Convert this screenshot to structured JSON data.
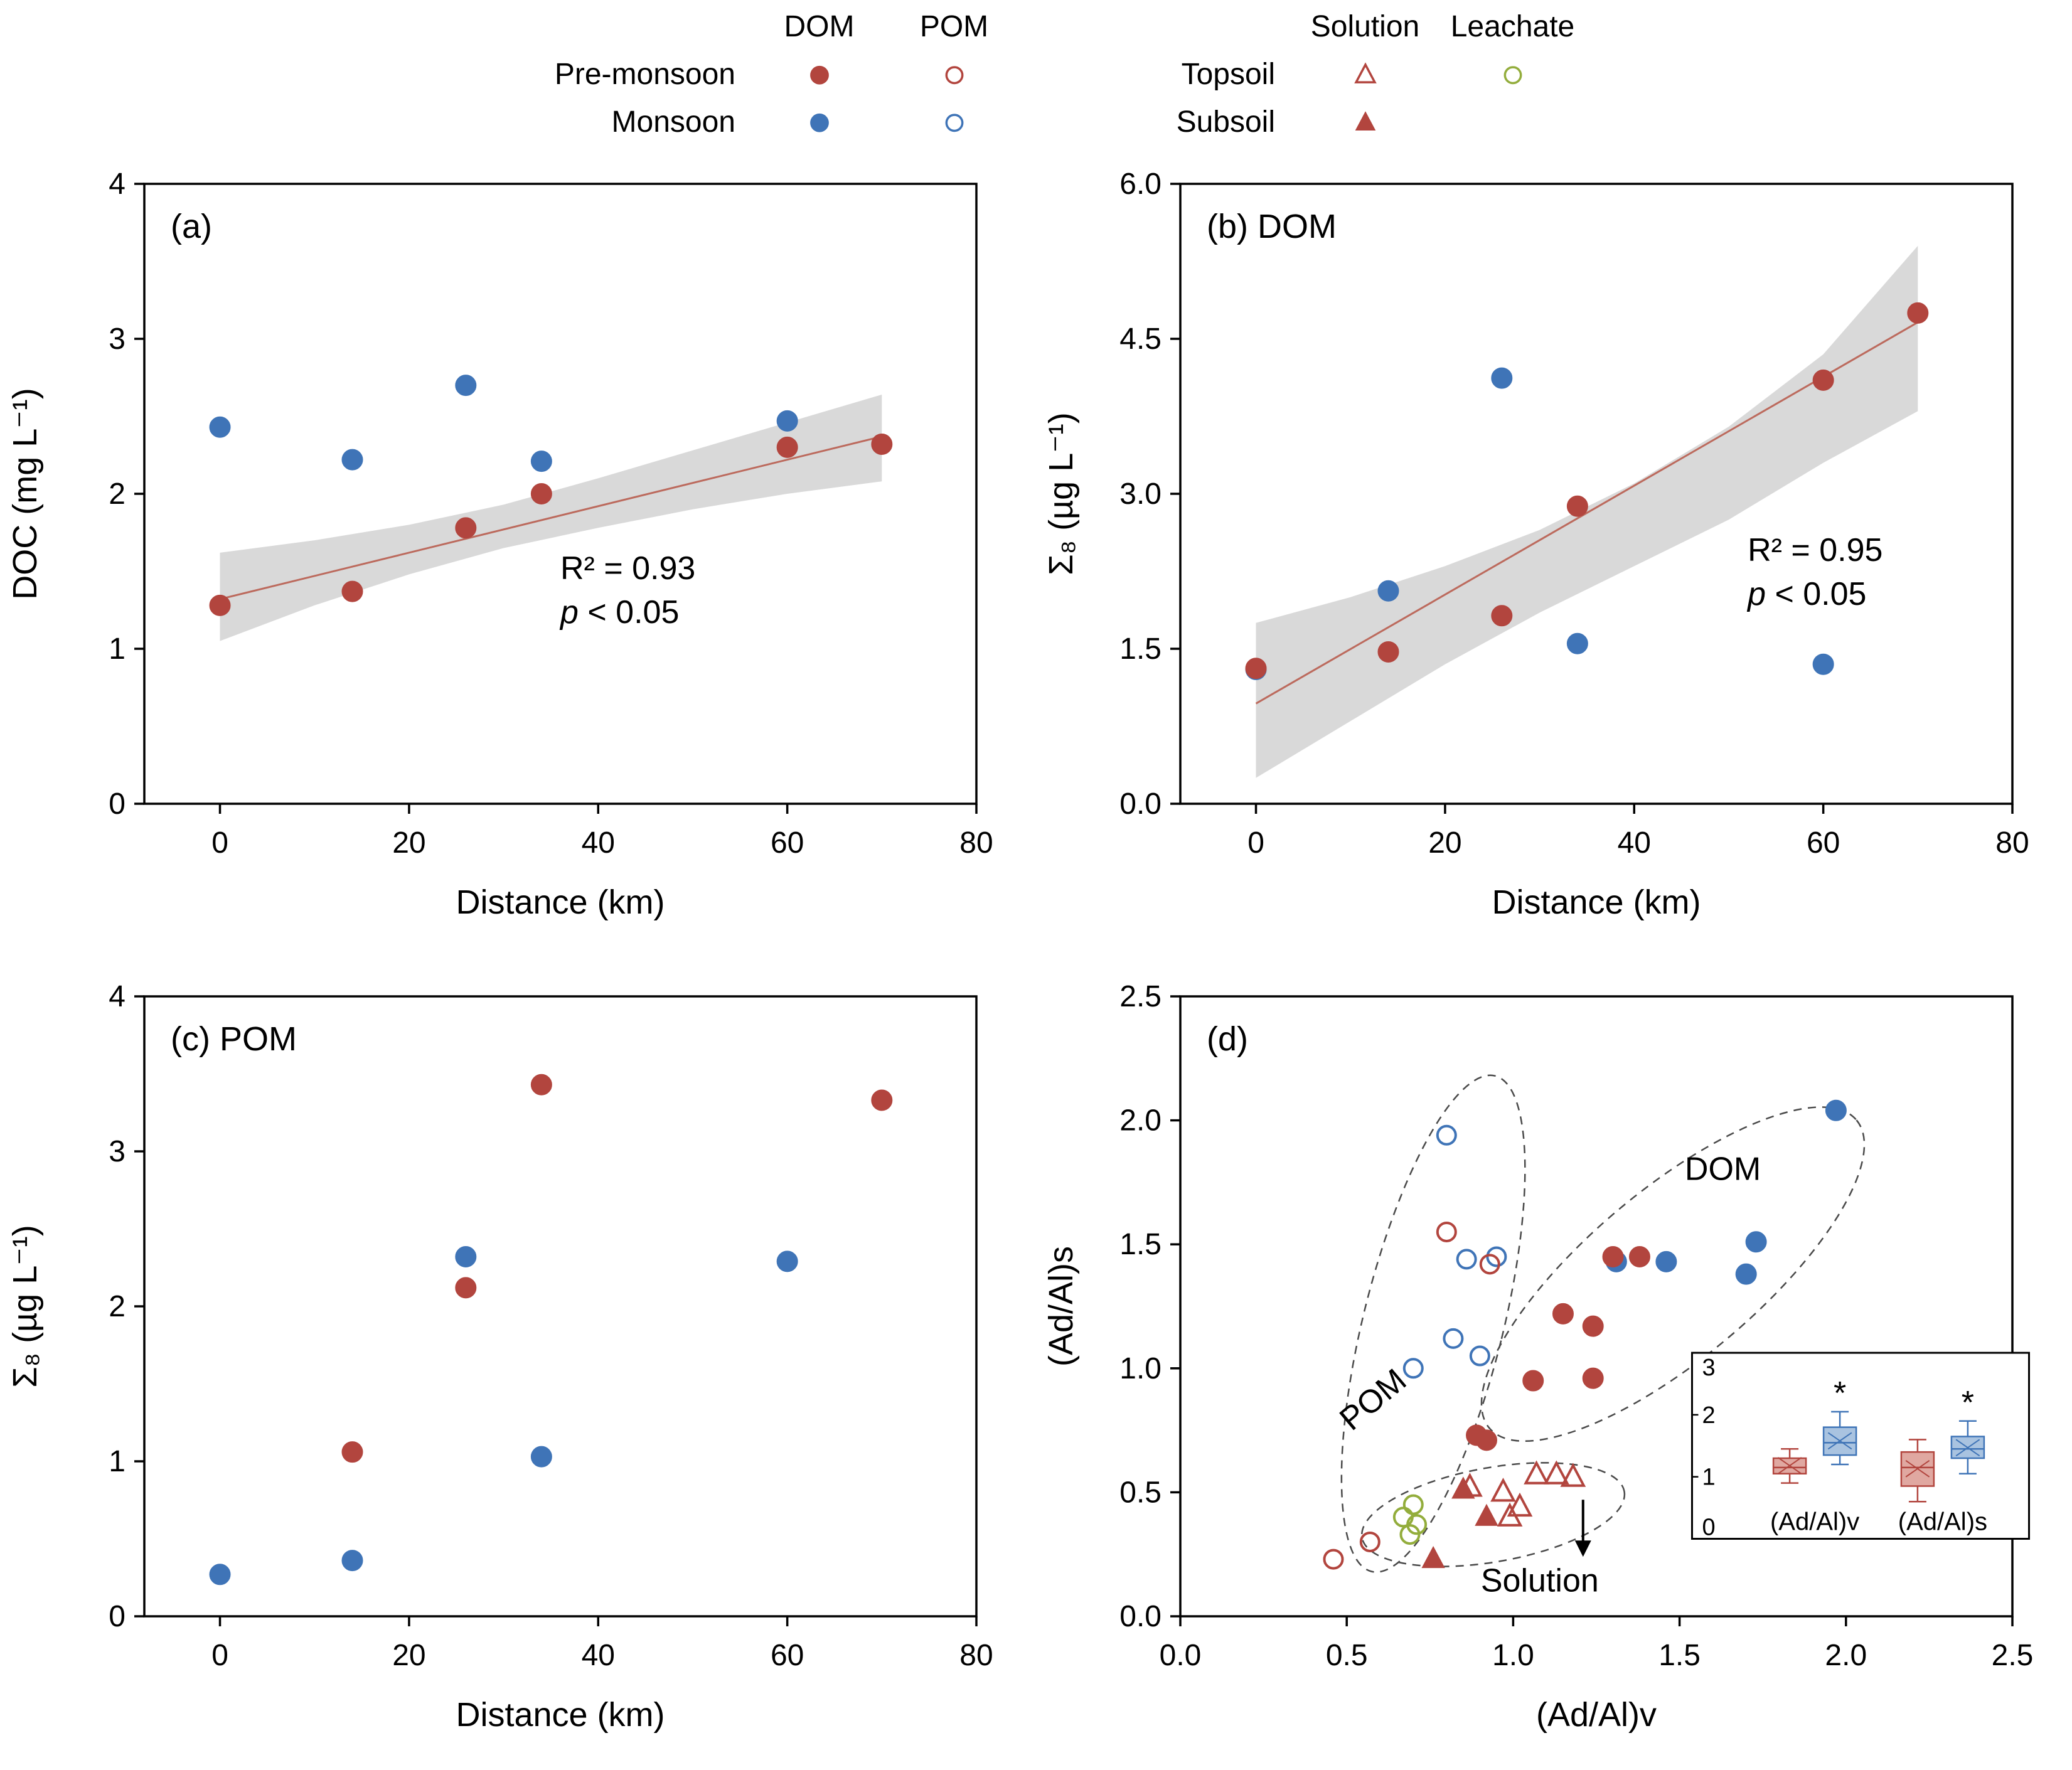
{
  "colors": {
    "red": "#b2453e",
    "blue": "#3f74b7",
    "green": "#93ad3c",
    "band": "#d2d2d2",
    "regline": "#bc6a5d",
    "annotation": "#c00000",
    "red_fill": "#e0a8a1",
    "blue_fill": "#a9c3e0",
    "ellipse": "#4a4a4a"
  },
  "legend": {
    "groups": [
      {
        "headers": [
          "DOM",
          "POM"
        ],
        "rows": [
          {
            "label": "Pre-monsoon",
            "symbols": [
              {
                "shape": "circle",
                "filled": true,
                "color": "red"
              },
              {
                "shape": "circle",
                "filled": false,
                "color": "red"
              }
            ]
          },
          {
            "label": "Monsoon",
            "symbols": [
              {
                "shape": "circle",
                "filled": true,
                "color": "blue"
              },
              {
                "shape": "circle",
                "filled": false,
                "color": "blue"
              }
            ]
          }
        ]
      },
      {
        "headers": [
          "Solution",
          "Leachate"
        ],
        "rows": [
          {
            "label": "Topsoil",
            "symbols": [
              {
                "shape": "triangle",
                "filled": false,
                "color": "red"
              },
              {
                "shape": "circle",
                "filled": false,
                "color": "green"
              }
            ]
          },
          {
            "label": "Subsoil",
            "symbols": [
              {
                "shape": "triangle",
                "filled": true,
                "color": "red"
              },
              null
            ]
          }
        ]
      }
    ]
  },
  "chart_data": [
    {
      "id": "a",
      "type": "scatter",
      "panel_label": "(a)",
      "xlabel": "Distance (km)",
      "ylabel": "DOC (mg L⁻¹)",
      "xlim": [
        -8,
        80
      ],
      "ylim": [
        0,
        4
      ],
      "xticks": [
        "0",
        "20",
        "40",
        "60",
        "80"
      ],
      "yticks": [
        "0",
        "1",
        "2",
        "3",
        "4"
      ],
      "series": [
        {
          "key": "monsoon-dom",
          "name": "Monsoon DOM",
          "marker": "circle",
          "filled": true,
          "color": "blue",
          "points": [
            [
              0,
              2.43
            ],
            [
              14,
              2.22
            ],
            [
              26,
              2.7
            ],
            [
              34,
              2.21
            ],
            [
              60,
              2.47
            ]
          ]
        },
        {
          "key": "pre-monsoon-dom",
          "name": "Pre-monsoon DOM",
          "marker": "circle",
          "filled": true,
          "color": "red",
          "points": [
            [
              0,
              1.28
            ],
            [
              14,
              1.37
            ],
            [
              26,
              1.78
            ],
            [
              34,
              2.0
            ],
            [
              60,
              2.3
            ],
            [
              70,
              2.32
            ]
          ]
        }
      ],
      "regression": {
        "x": [
          0,
          70
        ],
        "y": [
          1.32,
          2.37
        ],
        "r2": 0.93,
        "band": [
          [
            0,
            1.05,
            1.62
          ],
          [
            10,
            1.28,
            1.7
          ],
          [
            20,
            1.48,
            1.8
          ],
          [
            30,
            1.65,
            1.93
          ],
          [
            40,
            1.78,
            2.1
          ],
          [
            50,
            1.9,
            2.28
          ],
          [
            60,
            2.0,
            2.46
          ],
          [
            70,
            2.08,
            2.64
          ]
        ]
      },
      "annotation": {
        "x": 36,
        "y": 1.45,
        "r2_text": "R² = 0.93",
        "p_var": "p",
        "p_rest": " < 0.05"
      }
    },
    {
      "id": "b",
      "type": "scatter",
      "panel_label": "(b) DOM",
      "xlabel": "Distance (km)",
      "ylabel": "Σ₈ (µg L⁻¹)",
      "xlim": [
        -8,
        80
      ],
      "ylim": [
        0,
        6
      ],
      "xticks": [
        "0",
        "20",
        "40",
        "60",
        "80"
      ],
      "yticks": [
        "0.0",
        "1.5",
        "3.0",
        "4.5",
        "6.0"
      ],
      "series": [
        {
          "key": "monsoon-dom",
          "name": "Monsoon DOM",
          "marker": "circle",
          "filled": true,
          "color": "blue",
          "points": [
            [
              0,
              1.3
            ],
            [
              14,
              2.06
            ],
            [
              26,
              4.12
            ],
            [
              34,
              1.55
            ],
            [
              60,
              1.35
            ]
          ]
        },
        {
          "key": "pre-monsoon-dom",
          "name": "Pre-monsoon DOM",
          "marker": "circle",
          "filled": true,
          "color": "red",
          "points": [
            [
              0,
              1.31
            ],
            [
              14,
              1.47
            ],
            [
              26,
              1.82
            ],
            [
              34,
              2.88
            ],
            [
              60,
              4.1
            ],
            [
              70,
              4.75
            ]
          ]
        }
      ],
      "regression": {
        "x": [
          0,
          70
        ],
        "y": [
          0.97,
          4.66
        ],
        "r2": 0.95,
        "band": [
          [
            0,
            0.25,
            1.75
          ],
          [
            10,
            0.8,
            2.0
          ],
          [
            20,
            1.35,
            2.3
          ],
          [
            30,
            1.85,
            2.65
          ],
          [
            40,
            2.3,
            3.1
          ],
          [
            50,
            2.75,
            3.65
          ],
          [
            60,
            3.3,
            4.35
          ],
          [
            70,
            3.8,
            5.4
          ]
        ]
      },
      "annotation": {
        "x": 52,
        "y": 2.35,
        "r2_text": "R² = 0.95",
        "p_var": "p",
        "p_rest": " < 0.05"
      }
    },
    {
      "id": "c",
      "type": "scatter",
      "panel_label": "(c) POM",
      "xlabel": "Distance (km)",
      "ylabel": "Σ₈ (µg L⁻¹)",
      "xlim": [
        -8,
        80
      ],
      "ylim": [
        0,
        4
      ],
      "xticks": [
        "0",
        "20",
        "40",
        "60",
        "80"
      ],
      "yticks": [
        "0",
        "1",
        "2",
        "3",
        "4"
      ],
      "series": [
        {
          "key": "monsoon-pom",
          "name": "Monsoon POM",
          "marker": "circle",
          "filled": true,
          "color": "blue",
          "points": [
            [
              0,
              0.27
            ],
            [
              14,
              0.36
            ],
            [
              26,
              2.32
            ],
            [
              34,
              1.03
            ],
            [
              60,
              2.29
            ]
          ]
        },
        {
          "key": "pre-monsoon-pom",
          "name": "Pre-monsoon POM",
          "marker": "circle",
          "filled": true,
          "color": "red",
          "points": [
            [
              14,
              1.06
            ],
            [
              26,
              2.12
            ],
            [
              34,
              3.43
            ],
            [
              70,
              3.33
            ]
          ]
        }
      ]
    },
    {
      "id": "d",
      "type": "scatter",
      "panel_label": "(d)",
      "xlabel": "(Ad/Al)v",
      "ylabel": "(Ad/Al)s",
      "xlim": [
        0,
        2.5
      ],
      "ylim": [
        0,
        2.5
      ],
      "xticks": [
        "0.0",
        "0.5",
        "1.0",
        "1.5",
        "2.0",
        "2.5"
      ],
      "yticks": [
        "0.0",
        "0.5",
        "1.0",
        "1.5",
        "2.0",
        "2.5"
      ],
      "series": [
        {
          "key": "pom-monsoon",
          "name": "Monsoon POM",
          "marker": "circle",
          "filled": false,
          "color": "blue",
          "points": [
            [
              0.7,
              1.0
            ],
            [
              0.82,
              1.12
            ],
            [
              0.9,
              1.05
            ],
            [
              0.86,
              1.44
            ],
            [
              0.95,
              1.45
            ],
            [
              0.8,
              1.94
            ]
          ]
        },
        {
          "key": "pom-pre-monsoon",
          "name": "Pre-monsoon POM",
          "marker": "circle",
          "filled": false,
          "color": "red",
          "points": [
            [
              0.46,
              0.23
            ],
            [
              0.57,
              0.3
            ],
            [
              0.8,
              1.55
            ],
            [
              0.93,
              1.42
            ]
          ]
        },
        {
          "key": "solution-topsoil",
          "name": "Solution Topsoil",
          "marker": "triangle",
          "filled": false,
          "color": "red",
          "points": [
            [
              0.87,
              0.52
            ],
            [
              0.97,
              0.5
            ],
            [
              1.02,
              0.44
            ],
            [
              1.07,
              0.57
            ],
            [
              1.13,
              0.57
            ],
            [
              1.18,
              0.56
            ],
            [
              0.99,
              0.4
            ]
          ]
        },
        {
          "key": "solution-subsoil",
          "name": "Solution Subsoil",
          "marker": "triangle",
          "filled": true,
          "color": "red",
          "points": [
            [
              0.85,
              0.51
            ],
            [
              0.92,
              0.4
            ],
            [
              0.76,
              0.23
            ]
          ]
        },
        {
          "key": "leachate",
          "name": "Leachate",
          "marker": "circle",
          "filled": false,
          "color": "green",
          "points": [
            [
              0.67,
              0.4
            ],
            [
              0.7,
              0.45
            ],
            [
              0.71,
              0.37
            ],
            [
              0.69,
              0.33
            ]
          ]
        },
        {
          "key": "dom-monsoon",
          "name": "Monsoon DOM",
          "marker": "circle",
          "filled": true,
          "color": "blue",
          "points": [
            [
              1.31,
              1.43
            ],
            [
              1.46,
              1.43
            ],
            [
              1.7,
              1.38
            ],
            [
              1.73,
              1.51
            ],
            [
              1.97,
              2.04
            ]
          ]
        },
        {
          "key": "dom-pre-monsoon",
          "name": "Pre-monsoon DOM",
          "marker": "circle",
          "filled": true,
          "color": "red",
          "points": [
            [
              0.89,
              0.73
            ],
            [
              0.92,
              0.71
            ],
            [
              1.06,
              0.95
            ],
            [
              1.24,
              0.96
            ],
            [
              1.15,
              1.22
            ],
            [
              1.24,
              1.17
            ],
            [
              1.3,
              1.45
            ],
            [
              1.38,
              1.45
            ]
          ]
        }
      ],
      "ellipses": [
        {
          "name": "pom-cluster-ellipse",
          "cx": 0.76,
          "cy": 1.18,
          "rx": 0.21,
          "ry": 1.03,
          "rot": 14
        },
        {
          "name": "dom-cluster-ellipse",
          "cx": 1.48,
          "cy": 1.38,
          "rx": 0.72,
          "ry": 0.34,
          "rot": -40
        },
        {
          "name": "solution-cluster-ellipse",
          "cx": 0.94,
          "cy": 0.41,
          "rx": 0.4,
          "ry": 0.19,
          "rot": -10
        }
      ],
      "texts": [
        {
          "text": "POM",
          "x": 0.6,
          "y": 0.84,
          "rot": -40,
          "size": 52
        },
        {
          "text": "DOM",
          "x": 1.63,
          "y": 1.76,
          "rot": 0,
          "size": 52
        },
        {
          "text": "Solution",
          "x": 1.08,
          "y": 0.1,
          "rot": 0,
          "size": 52
        }
      ],
      "arrow": {
        "x1": 1.21,
        "y1": 0.47,
        "x2": 1.21,
        "y2": 0.25
      },
      "inset_boxplot": {
        "x0f": 0.615,
        "y0f": 0.575,
        "wf": 0.405,
        "hf": 0.3,
        "ylim": [
          0,
          3
        ],
        "yticks": [
          "0",
          "1",
          "2",
          "3"
        ],
        "groups": [
          {
            "label": "(Ad/Al)v",
            "xf": 0.27,
            "boxes": [
              {
                "color": "red",
                "whisker_low": 0.9,
                "q1": 1.05,
                "median": 1.15,
                "mean": 1.18,
                "q3": 1.3,
                "whisker_high": 1.45,
                "sig": null
              },
              {
                "color": "blue",
                "whisker_low": 1.2,
                "q1": 1.35,
                "median": 1.55,
                "mean": 1.58,
                "q3": 1.8,
                "whisker_high": 2.05,
                "sig": "*"
              }
            ]
          },
          {
            "label": "(Ad/Al)s",
            "xf": 0.73,
            "boxes": [
              {
                "color": "red",
                "whisker_low": 0.6,
                "q1": 0.85,
                "median": 1.15,
                "mean": 1.13,
                "q3": 1.4,
                "whisker_high": 1.6,
                "sig": null
              },
              {
                "color": "blue",
                "whisker_low": 1.05,
                "q1": 1.3,
                "median": 1.45,
                "mean": 1.47,
                "q3": 1.65,
                "whisker_high": 1.9,
                "sig": "*"
              }
            ]
          }
        ]
      }
    }
  ]
}
